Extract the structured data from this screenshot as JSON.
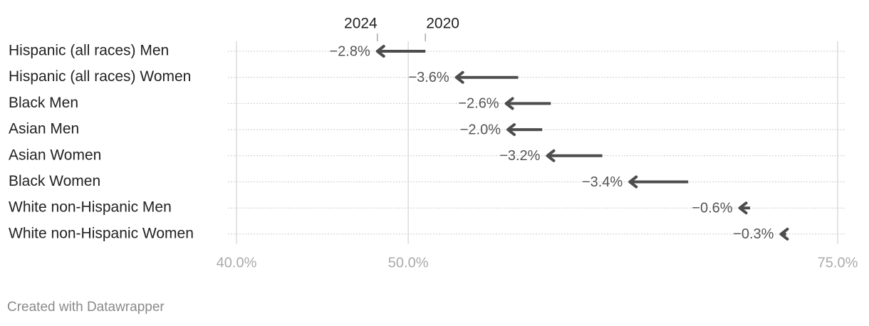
{
  "chart_data": {
    "type": "arrow",
    "categories": [
      "Hispanic (all races) Men",
      "Hispanic (all races) Women",
      "Black Men",
      "Asian Men",
      "Asian Women",
      "Black Women",
      "White non-Hispanic Men",
      "White non-Hispanic Women"
    ],
    "series": [
      {
        "name": "2020",
        "color": "#4d4d4d",
        "values": [
          51.0,
          56.4,
          58.3,
          57.8,
          61.3,
          66.3,
          69.9,
          72.0
        ]
      },
      {
        "name": "2024",
        "color": "#4d4d4d",
        "values": [
          48.2,
          52.8,
          55.7,
          55.8,
          58.1,
          62.9,
          69.3,
          71.7
        ]
      }
    ],
    "differences": {
      "values": [
        -2.8,
        -3.6,
        -2.6,
        -2.0,
        -3.2,
        -3.4,
        -0.6,
        -0.3
      ],
      "value_labels": [
        "−2.8%",
        "−3.6%",
        "−2.6%",
        "−2.0%",
        "−3.2%",
        "−3.4%",
        "−0.6%",
        "−0.3%"
      ]
    },
    "xlim": [
      40,
      75
    ],
    "xticks": [
      {
        "value": 40,
        "label": "40.0%"
      },
      {
        "value": 50,
        "label": "50.0%"
      },
      {
        "value": 75,
        "label": "75.0%"
      }
    ],
    "grid": true,
    "footer": "Created with Datawrapper"
  }
}
